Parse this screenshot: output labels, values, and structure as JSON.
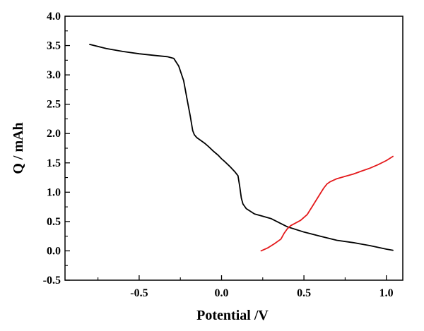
{
  "chart_data": {
    "type": "line",
    "title": "",
    "xlabel": "Potential  /V",
    "ylabel": "Q / mAh",
    "xlim": [
      -0.95,
      1.1
    ],
    "ylim": [
      -0.5,
      4.0
    ],
    "xticks": [
      -0.5,
      0.0,
      0.5,
      1.0
    ],
    "xtick_labels": [
      "-0.5",
      "0.0",
      "0.5",
      "1.0"
    ],
    "yticks": [
      -0.5,
      0.0,
      0.5,
      1.0,
      1.5,
      2.0,
      2.5,
      3.0,
      3.5,
      4.0
    ],
    "ytick_labels": [
      "-0.5",
      "0.0",
      "0.5",
      "1.0",
      "1.5",
      "2.0",
      "2.5",
      "3.0",
      "3.5",
      "4.0"
    ],
    "grid": false,
    "legend": "none",
    "series": [
      {
        "color": "#000000",
        "x": [
          -0.8,
          -0.7,
          -0.6,
          -0.5,
          -0.4,
          -0.33,
          -0.29,
          -0.26,
          -0.23,
          -0.21,
          -0.19,
          -0.175,
          -0.165,
          -0.15,
          -0.12,
          -0.1,
          -0.08,
          -0.05,
          -0.02,
          0.0,
          0.02,
          0.05,
          0.08,
          0.1,
          0.11,
          0.12,
          0.13,
          0.15,
          0.2,
          0.25,
          0.3,
          0.35,
          0.4,
          0.5,
          0.6,
          0.7,
          0.8,
          0.9,
          1.0,
          1.04
        ],
        "y": [
          3.52,
          3.45,
          3.4,
          3.36,
          3.33,
          3.31,
          3.28,
          3.15,
          2.9,
          2.6,
          2.3,
          2.05,
          1.98,
          1.93,
          1.87,
          1.83,
          1.78,
          1.7,
          1.63,
          1.57,
          1.52,
          1.44,
          1.35,
          1.28,
          1.1,
          0.9,
          0.8,
          0.72,
          0.63,
          0.59,
          0.55,
          0.48,
          0.41,
          0.32,
          0.25,
          0.18,
          0.14,
          0.09,
          0.03,
          0.01
        ]
      },
      {
        "color": "#e41a1c",
        "x": [
          0.24,
          0.28,
          0.32,
          0.36,
          0.38,
          0.4,
          0.42,
          0.44,
          0.48,
          0.52,
          0.56,
          0.6,
          0.62,
          0.64,
          0.66,
          0.7,
          0.75,
          0.8,
          0.85,
          0.9,
          0.95,
          1.0,
          1.04
        ],
        "y": [
          0.0,
          0.05,
          0.12,
          0.2,
          0.3,
          0.38,
          0.43,
          0.46,
          0.52,
          0.62,
          0.8,
          0.98,
          1.07,
          1.14,
          1.18,
          1.23,
          1.27,
          1.31,
          1.36,
          1.41,
          1.47,
          1.54,
          1.61
        ]
      }
    ]
  }
}
